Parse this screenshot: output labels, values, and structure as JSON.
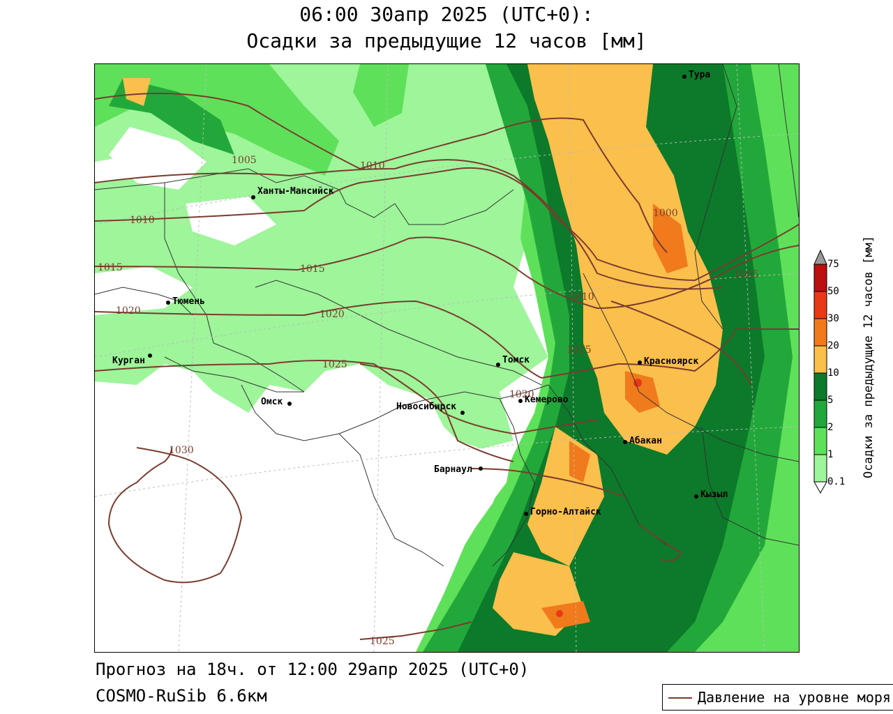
{
  "title_line1": "06:00 30апр 2025 (UTC+0):",
  "title_line2": "Осадки за предыдущие 12 часов [мм]",
  "footer_line1": "Прогноз на 18ч. от 12:00 29апр 2025 (UTC+0)",
  "footer_line2": "COSMO-RuSib 6.6км",
  "legend_label": "Давление на уровне моря",
  "colorbar": {
    "title": "Осадки за предыдущие 12 часов [мм]",
    "levels": [
      "0.1",
      "1",
      "2",
      "5",
      "10",
      "20",
      "30",
      "50",
      "75"
    ],
    "colors": [
      "#ffffff",
      "#9ef59a",
      "#5fe05a",
      "#22a83a",
      "#0c7a2a",
      "#fbbf4c",
      "#f07a1c",
      "#e83818",
      "#bb1010",
      "#9a9a9a"
    ]
  },
  "cities": [
    {
      "name": "Тура"
    },
    {
      "name": "Ханты-Мансийск"
    },
    {
      "name": "Тюмень"
    },
    {
      "name": "Курган"
    },
    {
      "name": "Омск"
    },
    {
      "name": "Томск"
    },
    {
      "name": "Новосибирск"
    },
    {
      "name": "Кемерово"
    },
    {
      "name": "Красноярск"
    },
    {
      "name": "Абакан"
    },
    {
      "name": "Барнаул"
    },
    {
      "name": "Горно-Алтайск"
    },
    {
      "name": "Кызыл"
    }
  ],
  "isobars": [
    "1005",
    "1010",
    "1010",
    "1015",
    "1015",
    "1020",
    "1020",
    "1025",
    "1025",
    "1030",
    "1000",
    "1005",
    "1010",
    "1015",
    "1020",
    "1030"
  ]
}
